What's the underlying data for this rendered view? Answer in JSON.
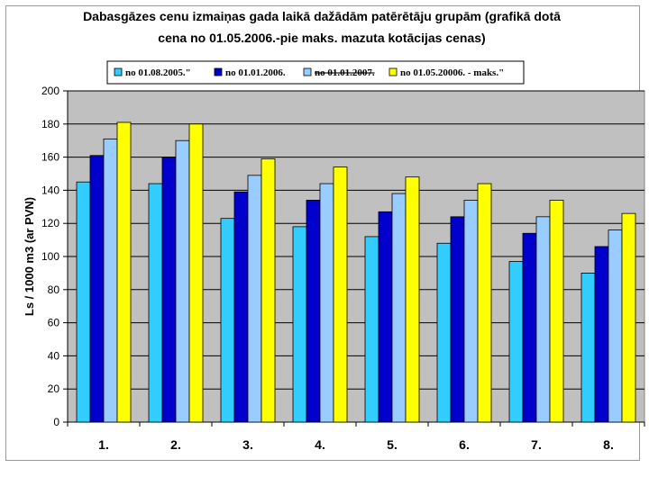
{
  "chart_data": {
    "type": "bar",
    "title_lines": [
      "Dabasgāzes  cenu izmaiņas gada laikā dažādām patērētāju grupām (grafikā dotā",
      "cena no 01.05.2006.-pie maks. mazuta kotācijas cenas)"
    ],
    "xlabel": "",
    "ylabel": "Ls / 1000 m3 (ar PVN)",
    "ylim": [
      0,
      200
    ],
    "yticks": [
      0,
      20,
      40,
      60,
      80,
      100,
      120,
      140,
      160,
      180,
      200
    ],
    "grid": true,
    "legend_position": "top",
    "categories": [
      "1.",
      "2.",
      "3.",
      "4.",
      "5.",
      "6.",
      "7.",
      "8."
    ],
    "series": [
      {
        "name": "no 01.08.2005.\"",
        "color": "#33ccff",
        "strikethrough": false,
        "values": [
          145,
          144,
          123,
          118,
          112,
          108,
          97,
          90
        ]
      },
      {
        "name": "no 01.01.2006.",
        "color": "#0000cc",
        "strikethrough": false,
        "values": [
          161,
          160,
          139,
          134,
          127,
          124,
          114,
          106
        ]
      },
      {
        "name": "no 01.01.2007.",
        "color": "#99ccff",
        "strikethrough": true,
        "values": [
          171,
          170,
          149,
          144,
          138,
          134,
          124,
          116
        ]
      },
      {
        "name": "no 01.05.20006. - maks.\"",
        "color": "#ffff00",
        "strikethrough": false,
        "values": [
          181,
          180,
          159,
          154,
          148,
          144,
          134,
          126
        ]
      }
    ],
    "plot_background": "#c0c0c0",
    "frame_color": "#9a9a9a"
  }
}
